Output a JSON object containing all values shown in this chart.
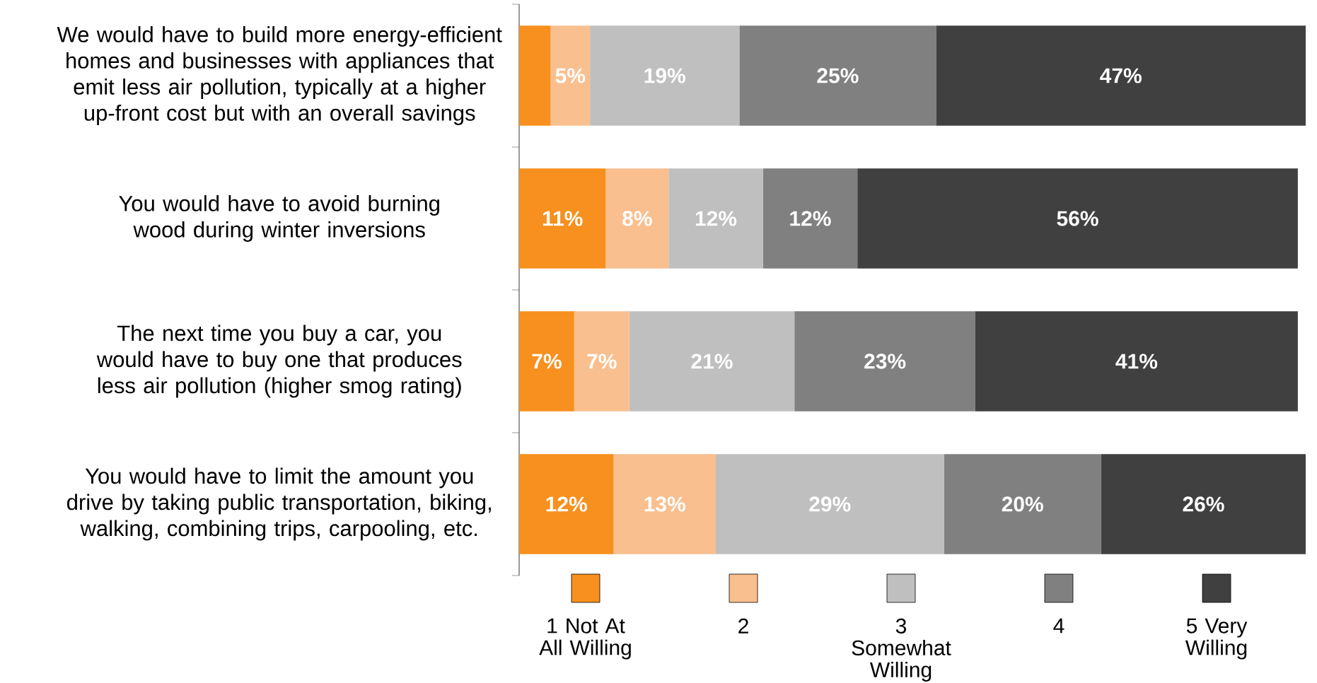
{
  "chart_data": {
    "type": "bar",
    "orientation": "horizontal",
    "stacked": true,
    "legend": "bottom",
    "grid": false,
    "categories": [
      "We would have to build more energy-efficient homes and businesses with appliances that emit less air pollution, typically at a higher up-front cost but with an overall savings",
      "You would have to avoid burning wood during winter inversions",
      "The next time you buy a car, you would have to buy one that produces less air pollution (higher smog rating)",
      "You would have to limit the amount you drive by taking public transportation, biking, walking, combining trips, carpooling, etc."
    ],
    "series": [
      {
        "name": "1 Not At All Willing",
        "color": "#f7901e",
        "values": [
          4,
          11,
          7,
          12
        ],
        "value_labels": [
          null,
          "11%",
          "7%",
          "12%"
        ]
      },
      {
        "name": "2",
        "color": "#f9bf8f",
        "values": [
          5,
          8,
          7,
          13
        ],
        "value_labels": [
          "5%",
          "8%",
          "7%",
          "13%"
        ]
      },
      {
        "name": "3 Somewhat Willing",
        "color": "#bfbfbf",
        "values": [
          19,
          12,
          21,
          29
        ],
        "value_labels": [
          "19%",
          "12%",
          "21%",
          "29%"
        ]
      },
      {
        "name": "4",
        "color": "#808080",
        "values": [
          25,
          12,
          23,
          20
        ],
        "value_labels": [
          "25%",
          "12%",
          "23%",
          "20%"
        ]
      },
      {
        "name": "5 Very Willing",
        "color": "#404040",
        "values": [
          47,
          56,
          41,
          26
        ],
        "value_labels": [
          "47%",
          "56%",
          "41%",
          "26%"
        ]
      }
    ]
  }
}
